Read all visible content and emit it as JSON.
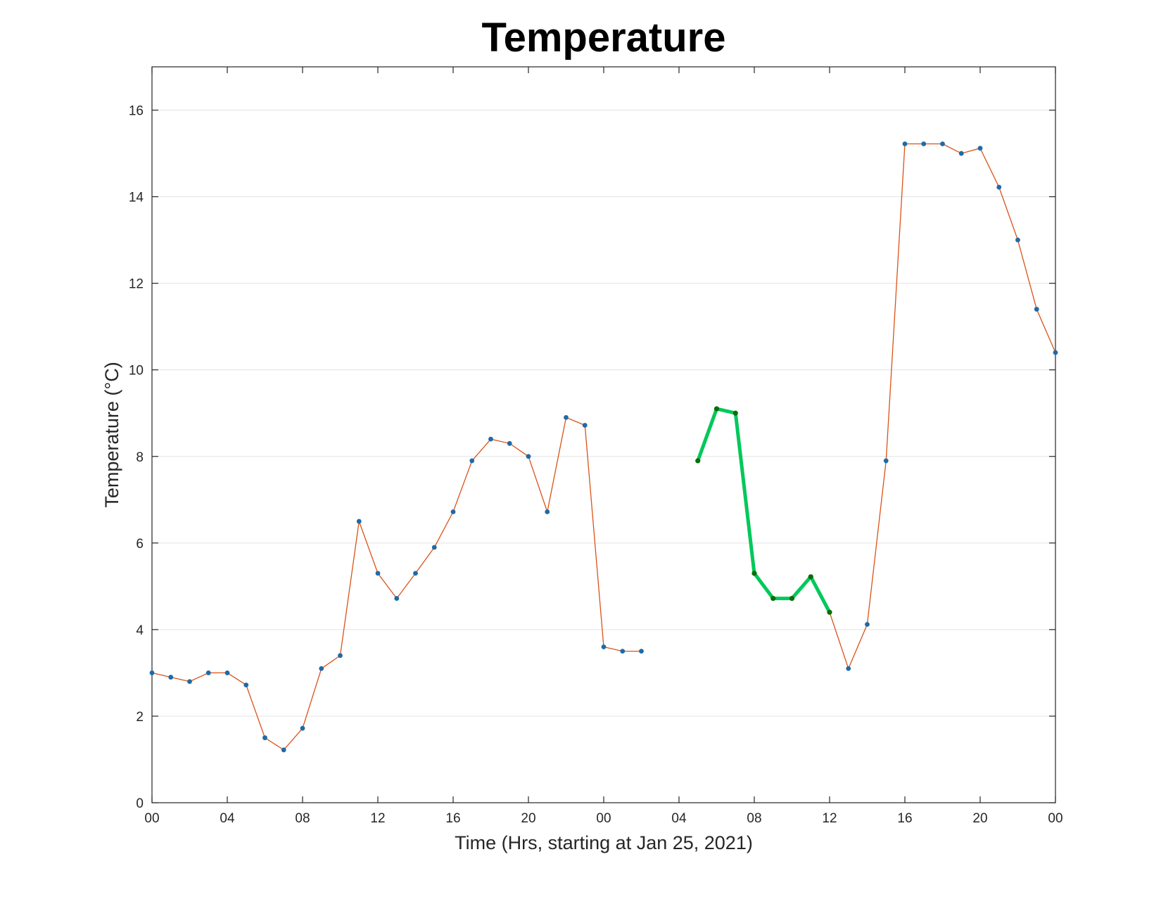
{
  "chart_data": {
    "type": "line",
    "title": "Temperature",
    "xlabel": "Time (Hrs, starting at Jan 25, 2021)",
    "ylabel": "Temperature (°C)",
    "xlim": [
      0,
      48
    ],
    "ylim": [
      0,
      17
    ],
    "x_ticks": [
      0,
      4,
      8,
      12,
      16,
      20,
      24,
      28,
      32,
      36,
      40,
      44,
      48
    ],
    "x_tick_labels": [
      "00",
      "04",
      "08",
      "12",
      "16",
      "20",
      "00",
      "04",
      "08",
      "12",
      "16",
      "20",
      "00"
    ],
    "y_ticks": [
      0,
      2,
      4,
      6,
      8,
      10,
      12,
      14,
      16
    ],
    "grid": "horizontal",
    "colors": {
      "measured_line": "#d95319",
      "measured_marker": "#1f6aa8",
      "highlight_line": "#00c85a",
      "highlight_marker": "#0a6e0a"
    },
    "series": [
      {
        "role": "measured",
        "segments": [
          {
            "x": [
              0,
              1,
              2,
              3,
              4,
              5,
              6,
              7,
              8,
              9,
              10,
              11,
              12,
              13,
              14,
              15,
              16,
              17,
              18,
              19,
              20,
              21,
              22,
              23,
              24,
              25,
              26
            ],
            "y": [
              3.0,
              2.9,
              2.8,
              3.0,
              3.0,
              2.72,
              1.5,
              1.22,
              1.72,
              3.1,
              3.4,
              6.5,
              5.3,
              4.72,
              5.3,
              5.9,
              6.72,
              7.9,
              8.4,
              8.3,
              8.0,
              6.72,
              8.9,
              8.72,
              3.6,
              3.5,
              3.5
            ]
          },
          {
            "x": [
              29,
              30,
              31,
              32,
              33,
              34,
              35,
              36,
              37,
              38,
              39,
              40,
              41,
              42,
              43,
              44,
              45,
              46,
              47,
              48
            ],
            "y": [
              7.9,
              9.1,
              9.0,
              5.3,
              4.72,
              4.72,
              5.22,
              4.4,
              3.1,
              4.12,
              7.9,
              15.22,
              15.22,
              15.22,
              15.0,
              15.12,
              14.22,
              13.0,
              11.4,
              10.4
            ]
          }
        ]
      },
      {
        "role": "highlight",
        "x": [
          29,
          30,
          31,
          32,
          33,
          34,
          35,
          36
        ],
        "y": [
          7.9,
          9.1,
          9.0,
          5.3,
          4.72,
          4.72,
          5.22,
          4.4
        ]
      }
    ]
  }
}
